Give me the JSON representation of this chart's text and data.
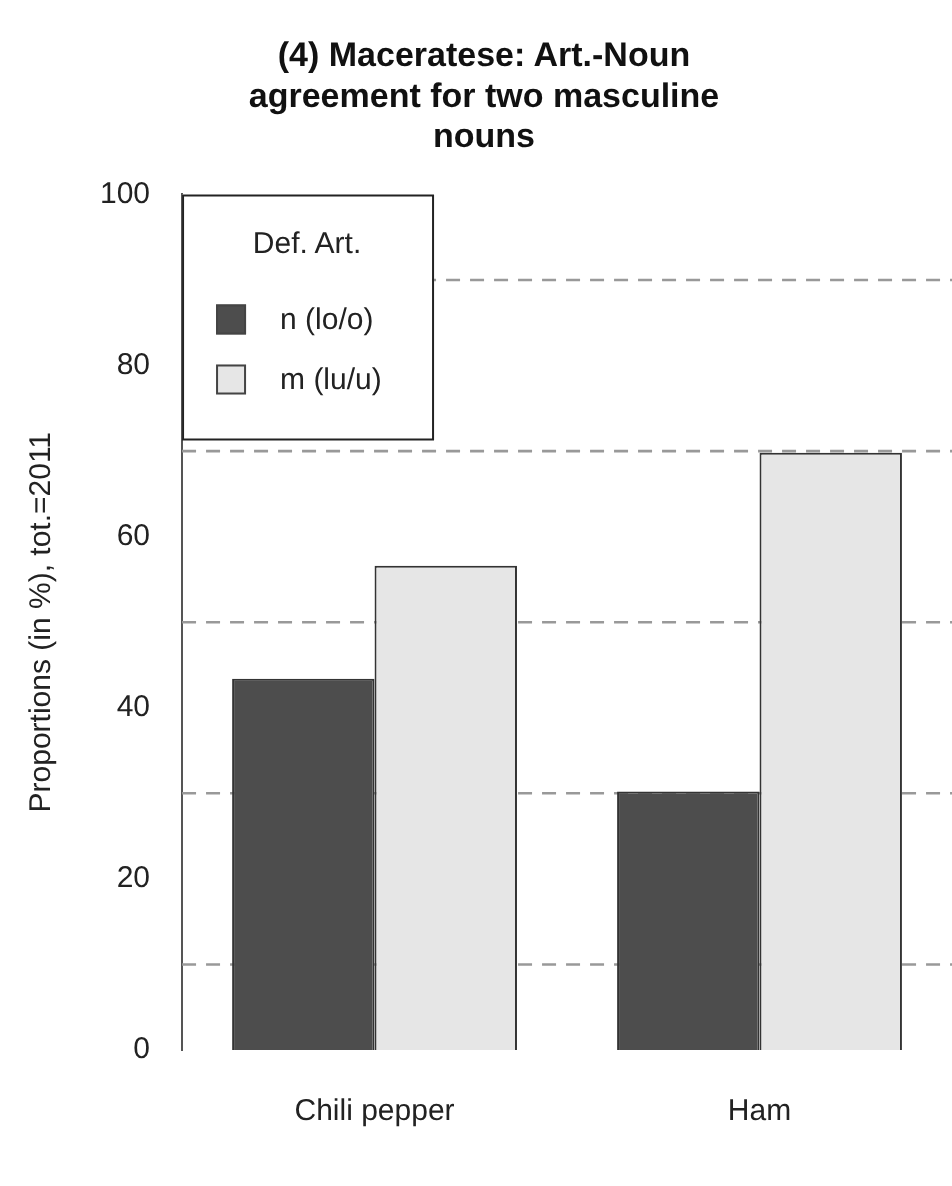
{
  "chart_data": {
    "type": "bar",
    "title": "(4) Maceratese: Art.-Noun agreement for two masculine nouns",
    "ylabel": "Proportions (in %), tot.=2011",
    "legend_title": "Def. Art.",
    "legend": "top left",
    "grid": false,
    "categories": [
      "Chili pepper",
      "Ham"
    ],
    "series": [
      {
        "name": "n (lo/o)",
        "color": "#4d4d4d",
        "values": [
          43.4,
          30.2
        ]
      },
      {
        "name": "m (lu/u)",
        "color": "#e6e6e6",
        "values": [
          56.6,
          69.8
        ]
      }
    ],
    "ylim": [
      0,
      100
    ],
    "yticks": [
      0,
      20,
      40,
      60,
      80,
      100
    ],
    "ref_lines": [
      {
        "axis": "y",
        "value": 10,
        "color": "#999999",
        "line_style": "dashed"
      },
      {
        "axis": "y",
        "value": 30,
        "color": "#999999",
        "line_style": "dashed"
      },
      {
        "axis": "y",
        "value": 50,
        "color": "#999999",
        "line_style": "dashed"
      },
      {
        "axis": "y",
        "value": 70,
        "color": "#999999",
        "line_style": "dashed"
      },
      {
        "axis": "y",
        "value": 90,
        "color": "#999999",
        "line_style": "dashed"
      }
    ]
  }
}
